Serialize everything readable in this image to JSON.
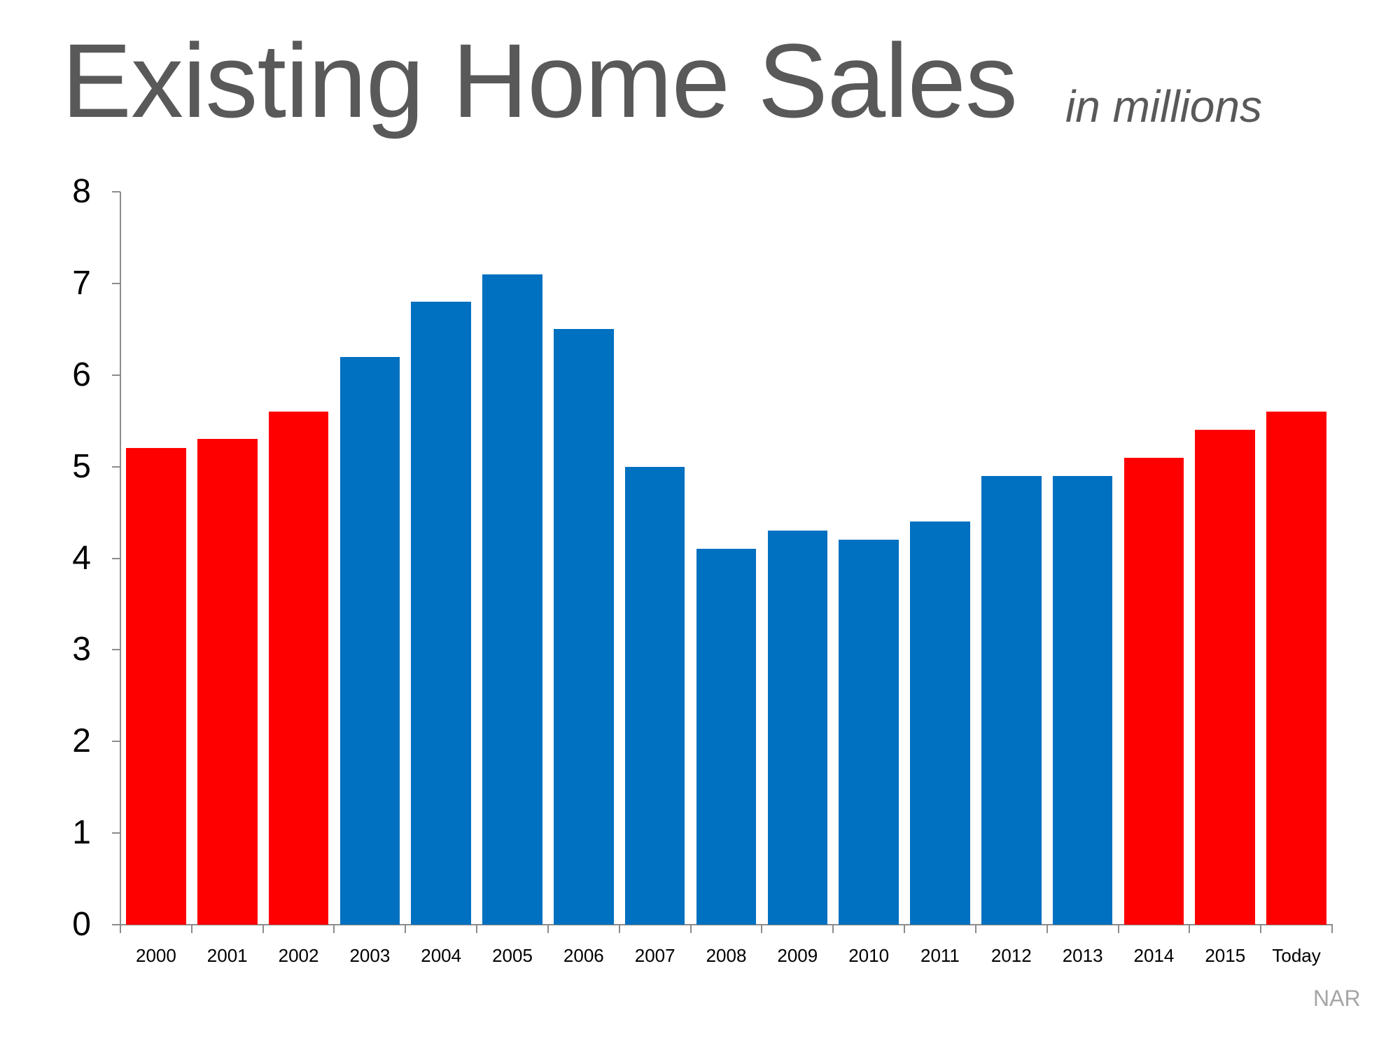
{
  "header": {
    "title": "Existing Home Sales",
    "subtitle": "in millions"
  },
  "source": "NAR",
  "colors": {
    "highlight": "#FF0000",
    "base": "#0070C0",
    "title": "#595959",
    "source": "#A6A6A6",
    "axis": "#8C8C8C"
  },
  "chart_data": {
    "type": "bar",
    "title": "Existing Home Sales",
    "subtitle": "in millions",
    "xlabel": "",
    "ylabel": "",
    "ylim": [
      0,
      8
    ],
    "yticks": [
      0,
      1,
      2,
      3,
      4,
      5,
      6,
      7,
      8
    ],
    "grid": false,
    "legend": null,
    "categories": [
      "2000",
      "2001",
      "2002",
      "2003",
      "2004",
      "2005",
      "2006",
      "2007",
      "2008",
      "2009",
      "2010",
      "2011",
      "2012",
      "2013",
      "2014",
      "2015",
      "Today"
    ],
    "values": [
      5.2,
      5.3,
      5.6,
      6.2,
      6.8,
      7.1,
      6.5,
      5.0,
      4.1,
      4.3,
      4.2,
      4.4,
      4.9,
      4.9,
      5.1,
      5.4,
      5.6
    ],
    "bar_colors": [
      "#FF0000",
      "#FF0000",
      "#FF0000",
      "#0070C0",
      "#0070C0",
      "#0070C0",
      "#0070C0",
      "#0070C0",
      "#0070C0",
      "#0070C0",
      "#0070C0",
      "#0070C0",
      "#0070C0",
      "#0070C0",
      "#FF0000",
      "#FF0000",
      "#FF0000"
    ],
    "annotations": [
      "NAR"
    ]
  }
}
